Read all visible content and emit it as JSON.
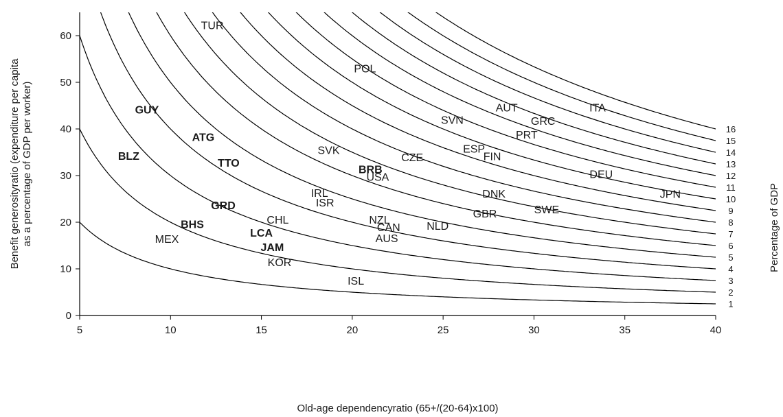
{
  "chart_data": {
    "type": "scatter",
    "xlabel": "Old-age dependencyratio (65+/(20-64)x100)",
    "ylabel_lines": [
      "Benefit generosityratio (expenditure per capita",
      "as a percentage of GDP per worker)"
    ],
    "right_label": "Percentage  of GDP",
    "xlim": [
      5,
      40
    ],
    "ylim": [
      0,
      65
    ],
    "x_ticks": [
      5,
      10,
      15,
      20,
      25,
      30,
      35,
      40
    ],
    "y_ticks": [
      0,
      10,
      20,
      30,
      40,
      50,
      60
    ],
    "grid": false,
    "iso_curves": {
      "description": "y = 100 * level / x",
      "levels": [
        1,
        2,
        3,
        4,
        5,
        6,
        7,
        8,
        9,
        10,
        11,
        12,
        13,
        14,
        15,
        16
      ]
    },
    "points": [
      {
        "label": "TUR",
        "x": 12.3,
        "y": 62.3,
        "bold": false
      },
      {
        "label": "POL",
        "x": 20.7,
        "y": 53.0,
        "bold": false
      },
      {
        "label": "AUT",
        "x": 28.5,
        "y": 44.6,
        "bold": false
      },
      {
        "label": "ITA",
        "x": 33.5,
        "y": 44.6,
        "bold": false
      },
      {
        "label": "GRC",
        "x": 30.5,
        "y": 41.8,
        "bold": false
      },
      {
        "label": "SVN",
        "x": 25.5,
        "y": 42.0,
        "bold": false
      },
      {
        "label": "PRT",
        "x": 29.6,
        "y": 38.8,
        "bold": false
      },
      {
        "label": "GUY",
        "x": 8.7,
        "y": 44.2,
        "bold": true
      },
      {
        "label": "ATG",
        "x": 11.8,
        "y": 38.3,
        "bold": true
      },
      {
        "label": "ESP",
        "x": 26.7,
        "y": 35.8,
        "bold": false
      },
      {
        "label": "FIN",
        "x": 27.7,
        "y": 34.2,
        "bold": false
      },
      {
        "label": "SVK",
        "x": 18.7,
        "y": 35.5,
        "bold": false
      },
      {
        "label": "CZE",
        "x": 23.3,
        "y": 34.0,
        "bold": false
      },
      {
        "label": "BLZ",
        "x": 7.7,
        "y": 34.3,
        "bold": true
      },
      {
        "label": "TTO",
        "x": 13.2,
        "y": 32.8,
        "bold": true
      },
      {
        "label": "BRB",
        "x": 21.0,
        "y": 31.4,
        "bold": true
      },
      {
        "label": "USA",
        "x": 21.4,
        "y": 29.8,
        "bold": false
      },
      {
        "label": "DEU",
        "x": 33.7,
        "y": 30.4,
        "bold": false
      },
      {
        "label": "IRL",
        "x": 18.2,
        "y": 26.3,
        "bold": false
      },
      {
        "label": "ISR",
        "x": 18.5,
        "y": 24.3,
        "bold": false
      },
      {
        "label": "DNK",
        "x": 27.8,
        "y": 26.2,
        "bold": false
      },
      {
        "label": "JPN",
        "x": 37.5,
        "y": 26.1,
        "bold": false
      },
      {
        "label": "GRD",
        "x": 12.9,
        "y": 23.7,
        "bold": true
      },
      {
        "label": "SWE",
        "x": 30.7,
        "y": 22.8,
        "bold": false
      },
      {
        "label": "GBR",
        "x": 27.3,
        "y": 21.9,
        "bold": false
      },
      {
        "label": "CHL",
        "x": 15.9,
        "y": 20.6,
        "bold": false
      },
      {
        "label": "NZL",
        "x": 21.5,
        "y": 20.6,
        "bold": false
      },
      {
        "label": "BHS",
        "x": 11.2,
        "y": 19.6,
        "bold": true
      },
      {
        "label": "NLD",
        "x": 24.7,
        "y": 19.3,
        "bold": false
      },
      {
        "label": "CAN",
        "x": 22.0,
        "y": 19.0,
        "bold": false
      },
      {
        "label": "LCA",
        "x": 15.0,
        "y": 17.8,
        "bold": true
      },
      {
        "label": "MEX",
        "x": 9.8,
        "y": 16.5,
        "bold": false
      },
      {
        "label": "AUS",
        "x": 21.9,
        "y": 16.6,
        "bold": false
      },
      {
        "label": "JAM",
        "x": 15.6,
        "y": 14.7,
        "bold": true
      },
      {
        "label": "KOR",
        "x": 16.0,
        "y": 11.5,
        "bold": false
      },
      {
        "label": "ISL",
        "x": 20.2,
        "y": 7.5,
        "bold": false
      }
    ]
  }
}
